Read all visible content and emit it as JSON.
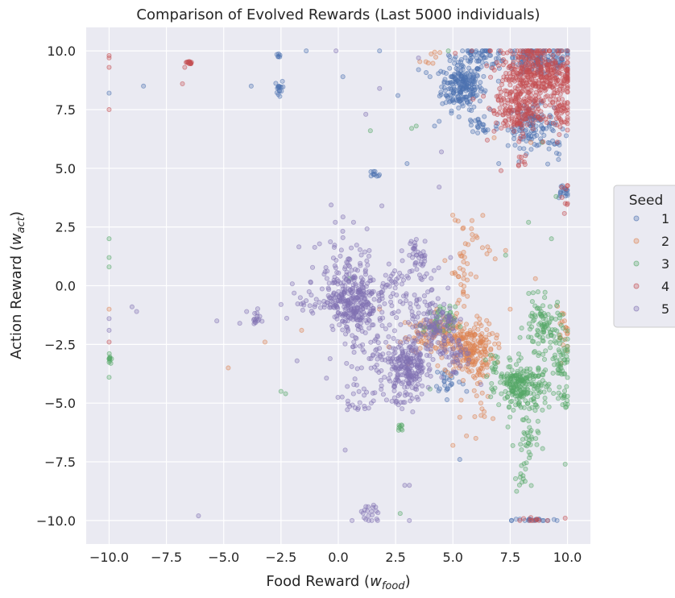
{
  "chart_data": {
    "type": "scatter",
    "title": "Comparison of Evolved Rewards (Last 5000 individuals)",
    "xlabel_main": "Food Reward (",
    "xlabel_var": "w",
    "xlabel_sub": "food",
    "xlabel_end": ")",
    "ylabel_main": "Action Reward (",
    "ylabel_var": "w",
    "ylabel_sub": "act",
    "ylabel_end": ")",
    "xlim": [
      -11,
      11
    ],
    "ylim": [
      -11,
      11
    ],
    "x_ticks": [
      -10,
      -7.5,
      -5,
      -2.5,
      0,
      2.5,
      5,
      7.5,
      10
    ],
    "x_tick_labels": [
      "−10.0",
      "−7.5",
      "−5.0",
      "−2.5",
      "0.0",
      "2.5",
      "5.0",
      "7.5",
      "10.0"
    ],
    "y_ticks": [
      10,
      7.5,
      5,
      2.5,
      0,
      -2.5,
      -5,
      -7.5,
      -10
    ],
    "y_tick_labels": [
      "10.0",
      "7.5",
      "5.0",
      "2.5",
      "0.0",
      "−2.5",
      "−5.0",
      "−7.5",
      "−10.0"
    ],
    "grid": true,
    "legend": {
      "title": "Seed",
      "placement": "right-outside"
    },
    "series": [
      {
        "name": "1",
        "color": "#4c72b0",
        "clusters": [
          [
            5.4,
            8.5,
            0.45,
            0.5,
            220
          ],
          [
            8.4,
            6.8,
            0.5,
            0.45,
            120
          ],
          [
            8.8,
            9.6,
            0.8,
            0.35,
            140
          ],
          [
            6.2,
            9.8,
            0.6,
            0.2,
            60
          ],
          [
            9.8,
            4.0,
            0.15,
            0.15,
            18
          ],
          [
            -2.6,
            8.4,
            0.08,
            0.15,
            16
          ],
          [
            -2.6,
            9.8,
            0.08,
            0.05,
            6
          ],
          [
            1.5,
            4.7,
            0.2,
            0.1,
            10
          ],
          [
            8.6,
            -10.0,
            0.5,
            0.05,
            20
          ],
          [
            6.2,
            6.8,
            0.4,
            0.3,
            25
          ],
          [
            4.8,
            -4.0,
            0.3,
            0.3,
            25
          ],
          [
            9.5,
            6.0,
            0.3,
            0.5,
            15
          ]
        ],
        "points": [
          [
            -10.0,
            8.2
          ],
          [
            -8.5,
            8.5
          ],
          [
            -3.8,
            8.5
          ],
          [
            -1.4,
            10.0
          ],
          [
            0.2,
            8.9
          ],
          [
            2.6,
            8.1
          ],
          [
            3.0,
            5.2
          ],
          [
            4.4,
            7.0
          ],
          [
            4.2,
            6.8
          ],
          [
            7.0,
            5.2
          ],
          [
            5.3,
            -7.4
          ],
          [
            5.6,
            -4.5
          ],
          [
            3.8,
            -2.5
          ],
          [
            1.8,
            10.0
          ],
          [
            3.5,
            9.2
          ],
          [
            4.0,
            8.9
          ]
        ]
      },
      {
        "name": "2",
        "color": "#dd8452",
        "clusters": [
          [
            5.7,
            -2.7,
            0.55,
            0.6,
            230
          ],
          [
            4.5,
            -1.9,
            0.4,
            0.35,
            70
          ],
          [
            5.4,
            0.6,
            0.25,
            1.2,
            35
          ],
          [
            9.8,
            -2.0,
            0.15,
            0.5,
            20
          ],
          [
            3.6,
            -2.2,
            0.4,
            0.4,
            30
          ],
          [
            6.3,
            -5.0,
            0.25,
            0.8,
            20
          ],
          [
            5.8,
            2.0,
            0.4,
            0.8,
            15
          ],
          [
            4.2,
            9.8,
            0.3,
            0.15,
            8
          ]
        ],
        "points": [
          [
            -10.0,
            -1.0
          ],
          [
            -4.8,
            -3.5
          ],
          [
            -3.2,
            -2.4
          ],
          [
            -1.6,
            -1.9
          ],
          [
            1.8,
            -1.0
          ],
          [
            2.2,
            -2.6
          ],
          [
            5.0,
            -6.8
          ],
          [
            6.0,
            -6.5
          ],
          [
            5.3,
            -5.6
          ],
          [
            6.6,
            1.5
          ],
          [
            7.3,
            1.5
          ],
          [
            8.6,
            0.3
          ],
          [
            6.8,
            6.3
          ],
          [
            8.4,
            6.1
          ],
          [
            4.3,
            -1.0
          ],
          [
            7.5,
            -1.0
          ]
        ]
      },
      {
        "name": "3",
        "color": "#55a868",
        "clusters": [
          [
            8.1,
            -4.4,
            0.55,
            0.55,
            200
          ],
          [
            8.9,
            -1.7,
            0.4,
            0.55,
            90
          ],
          [
            9.7,
            -3.0,
            0.25,
            0.5,
            50
          ],
          [
            7.6,
            -3.9,
            0.3,
            0.3,
            40
          ],
          [
            8.2,
            -6.8,
            0.25,
            0.5,
            30
          ],
          [
            8.0,
            -8.2,
            0.15,
            0.3,
            12
          ],
          [
            4.4,
            -1.6,
            0.35,
            0.35,
            40
          ],
          [
            9.9,
            -4.8,
            0.1,
            0.3,
            15
          ],
          [
            -10.0,
            -3.1,
            0.05,
            0.15,
            10
          ],
          [
            2.7,
            -6.1,
            0.1,
            0.1,
            8
          ],
          [
            6.8,
            -3.3,
            0.2,
            0.4,
            15
          ]
        ],
        "points": [
          [
            -10.0,
            1.2
          ],
          [
            -10.0,
            2.0
          ],
          [
            -10.0,
            0.8
          ],
          [
            -10.0,
            -3.9
          ],
          [
            -2.3,
            -4.6
          ],
          [
            -2.5,
            -4.5
          ],
          [
            1.4,
            6.6
          ],
          [
            3.2,
            6.7
          ],
          [
            3.4,
            6.8
          ],
          [
            7.3,
            1.3
          ],
          [
            8.3,
            2.7
          ],
          [
            9.3,
            2.0
          ],
          [
            9.5,
            3.8
          ],
          [
            9.9,
            -7.6
          ],
          [
            2.7,
            -9.7
          ],
          [
            4.8,
            10.0
          ],
          [
            8.9,
            6.1
          ],
          [
            0.5,
            0.3
          ],
          [
            8.5,
            -0.3
          ],
          [
            9.0,
            -0.5
          ],
          [
            4.0,
            -4.4
          ]
        ]
      },
      {
        "name": "4",
        "color": "#c44e52",
        "clusters": [
          [
            8.7,
            9.0,
            0.85,
            0.7,
            420
          ],
          [
            7.8,
            7.4,
            0.5,
            0.5,
            150
          ],
          [
            9.6,
            7.3,
            0.25,
            0.4,
            40
          ],
          [
            -6.5,
            9.5,
            0.1,
            0.04,
            14
          ],
          [
            9.9,
            4.0,
            0.1,
            0.4,
            8
          ],
          [
            8.6,
            -10.0,
            0.3,
            0.06,
            10
          ],
          [
            8.0,
            5.3,
            0.2,
            0.2,
            8
          ]
        ],
        "points": [
          [
            -10.0,
            9.8
          ],
          [
            -10.0,
            9.7
          ],
          [
            -10.0,
            9.3
          ],
          [
            -10.0,
            7.5
          ],
          [
            -6.8,
            8.6
          ],
          [
            -6.7,
            9.3
          ],
          [
            -10.0,
            -2.4
          ],
          [
            5.1,
            9.9
          ],
          [
            7.1,
            4.9
          ],
          [
            9.9,
            3.5
          ],
          [
            9.9,
            -9.9
          ],
          [
            6.5,
            6.2
          ]
        ]
      },
      {
        "name": "5",
        "color": "#8172b2",
        "clusters": [
          [
            0.6,
            -0.6,
            0.55,
            0.65,
            300
          ],
          [
            3.0,
            -3.5,
            0.4,
            0.6,
            200
          ],
          [
            4.3,
            -2.0,
            0.6,
            0.7,
            150
          ],
          [
            1.4,
            -2.8,
            0.7,
            1.0,
            80
          ],
          [
            0.2,
            1.4,
            1.0,
            0.8,
            50
          ],
          [
            3.2,
            -0.5,
            0.5,
            0.6,
            40
          ],
          [
            -1.2,
            -0.7,
            0.5,
            0.4,
            25
          ],
          [
            2.3,
            0.0,
            0.3,
            0.3,
            25
          ],
          [
            3.5,
            1.2,
            0.3,
            0.4,
            25
          ],
          [
            -3.6,
            -1.4,
            0.1,
            0.15,
            15
          ],
          [
            1.4,
            -9.8,
            0.3,
            0.3,
            20
          ],
          [
            0.8,
            -5.0,
            0.4,
            0.3,
            20
          ],
          [
            2.8,
            -5.0,
            0.3,
            0.3,
            15
          ],
          [
            5.2,
            -3.0,
            0.4,
            0.4,
            30
          ],
          [
            3.3,
            1.5,
            0.1,
            0.2,
            10
          ]
        ],
        "points": [
          [
            -10.0,
            -1.4
          ],
          [
            -10.0,
            -1.9
          ],
          [
            -9.0,
            -0.9
          ],
          [
            -8.8,
            -1.1
          ],
          [
            -6.1,
            -9.8
          ],
          [
            -5.3,
            -1.5
          ],
          [
            -4.3,
            -1.6
          ],
          [
            -4.0,
            -1.1
          ],
          [
            -1.8,
            -3.2
          ],
          [
            -2.5,
            -0.8
          ],
          [
            0.3,
            -7.0
          ],
          [
            1.9,
            3.4
          ],
          [
            2.9,
            -8.5
          ],
          [
            3.1,
            -8.5
          ],
          [
            3.1,
            -10.0
          ],
          [
            4.4,
            4.2
          ],
          [
            4.5,
            5.7
          ],
          [
            3.5,
            9.7
          ],
          [
            -0.1,
            10.0
          ],
          [
            1.2,
            7.3
          ],
          [
            1.8,
            8.4
          ],
          [
            4.9,
            1.2
          ],
          [
            0.6,
            -10.0
          ]
        ]
      }
    ]
  }
}
